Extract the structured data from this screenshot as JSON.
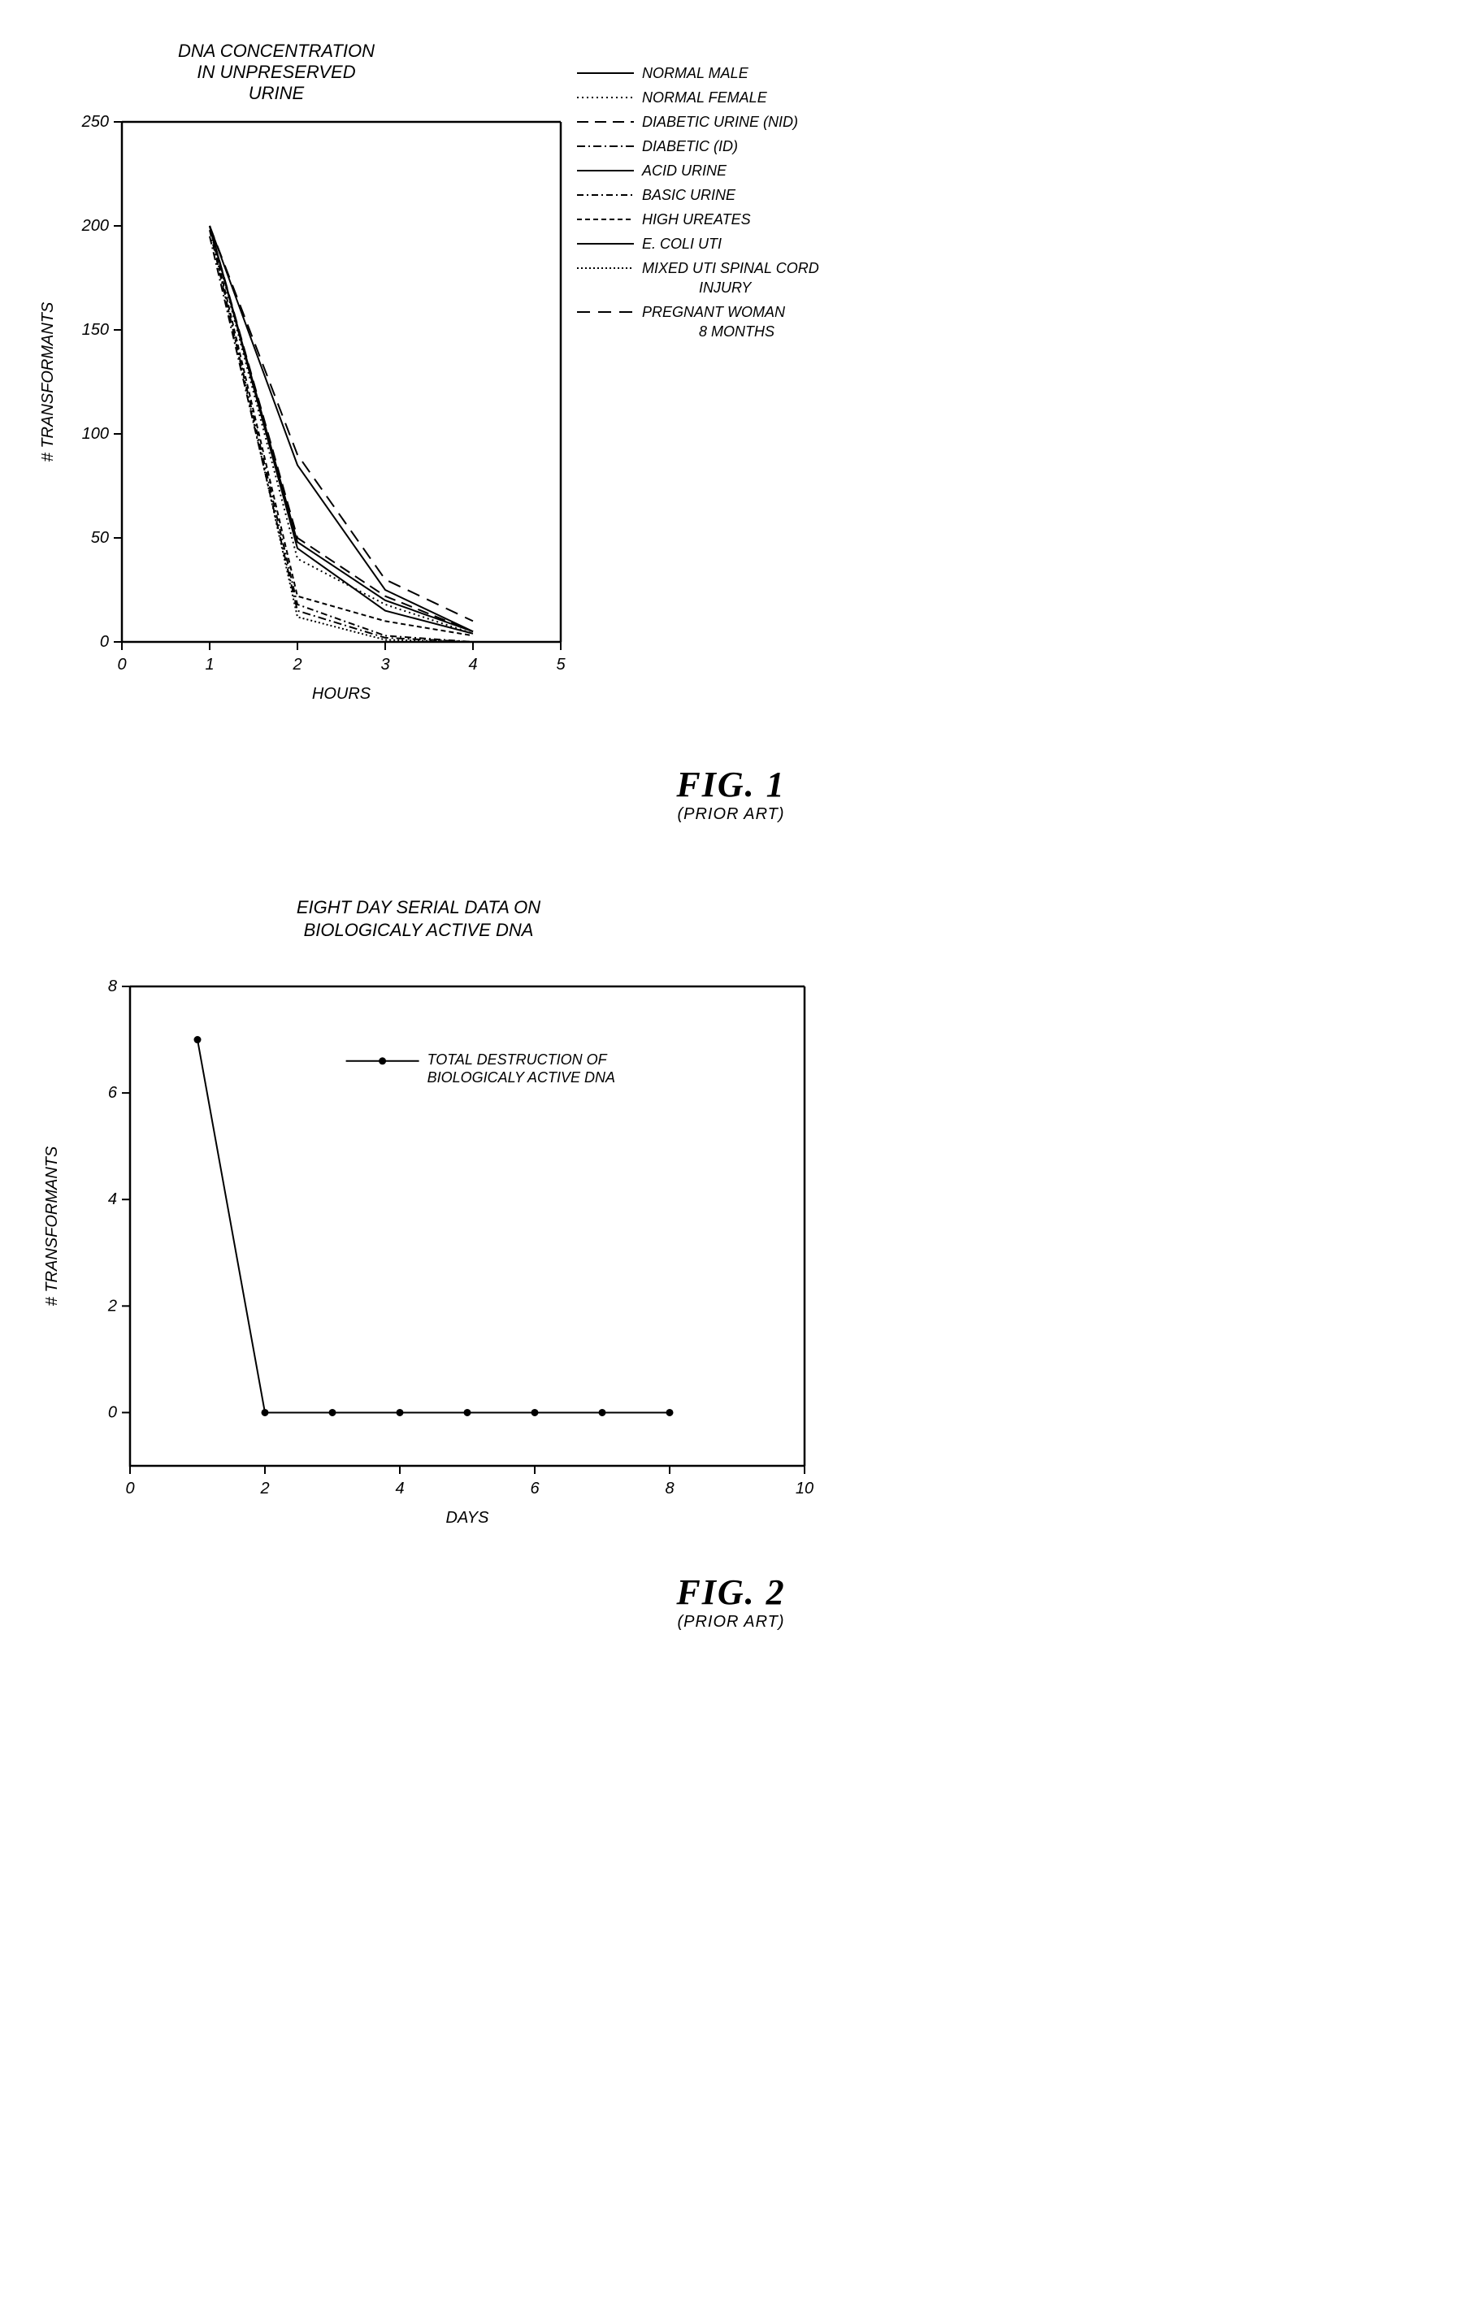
{
  "fig1": {
    "type": "line",
    "title_line1": "DNA CONCENTRATION",
    "title_line2": "IN UNPRESERVED",
    "title_line3": "URINE",
    "title_fontsize": 22,
    "xlabel": "HOURS",
    "ylabel": "# TRANSFORMANTS",
    "label_fontsize": 20,
    "tick_fontsize": 20,
    "xlim": [
      0,
      5
    ],
    "ylim": [
      0,
      250
    ],
    "xtick_step": 1,
    "xticks": [
      0,
      1,
      2,
      3,
      4,
      5
    ],
    "yticks": [
      0,
      50,
      100,
      150,
      200,
      250
    ],
    "background_color": "#ffffff",
    "axis_color": "#000000",
    "line_color": "#000000",
    "line_width": 2,
    "legend_fontsize": 18,
    "legend_line_length": 70,
    "series": [
      {
        "name": "NORMAL MALE",
        "dash": "none",
        "x": [
          1,
          2,
          3,
          4
        ],
        "y": [
          200,
          85,
          25,
          5
        ]
      },
      {
        "name": "NORMAL FEMALE",
        "dash": "2 4",
        "x": [
          1,
          2,
          3,
          4
        ],
        "y": [
          200,
          40,
          18,
          4
        ]
      },
      {
        "name": "DIABETIC URINE (NID)",
        "dash": "14 8",
        "x": [
          1,
          2,
          3,
          4
        ],
        "y": [
          200,
          50,
          22,
          5
        ]
      },
      {
        "name": "DIABETIC (ID)",
        "dash": "10 4 2 4",
        "x": [
          1,
          2,
          3,
          4
        ],
        "y": [
          195,
          15,
          2,
          0
        ]
      },
      {
        "name": "ACID URINE",
        "dash": "none",
        "x": [
          1,
          2,
          3,
          4
        ],
        "y": [
          200,
          48,
          20,
          5
        ]
      },
      {
        "name": "BASIC URINE",
        "dash": "8 4 2 4",
        "x": [
          1,
          2,
          3,
          4
        ],
        "y": [
          198,
          18,
          3,
          0
        ]
      },
      {
        "name": "HIGH UREATES",
        "dash": "6 4",
        "x": [
          1,
          2,
          3,
          4
        ],
        "y": [
          200,
          22,
          10,
          3
        ]
      },
      {
        "name": "E. COLI UTI",
        "dash": "none",
        "x": [
          1,
          2,
          3,
          4
        ],
        "y": [
          200,
          45,
          15,
          4
        ]
      },
      {
        "name_line1": "MIXED UTI SPINAL CORD",
        "name_line2": "INJURY",
        "dash": "2 3",
        "x": [
          1,
          2,
          3,
          4
        ],
        "y": [
          200,
          12,
          1,
          0
        ]
      },
      {
        "name_line1": "PREGNANT WOMAN",
        "name_line2": "8 MONTHS",
        "dash": "16 10",
        "x": [
          1,
          2,
          3,
          4
        ],
        "y": [
          200,
          90,
          30,
          10
        ]
      }
    ],
    "fig_label": "FIG. 1",
    "fig_sub": "(PRIOR ART)"
  },
  "fig2": {
    "type": "line",
    "title_line1": "EIGHT DAY SERIAL DATA ON",
    "title_line2": "BIOLOGICALY  ACTIVE DNA",
    "title_fontsize": 22,
    "xlabel": "DAYS",
    "ylabel": "# TRANSFORMANTS",
    "label_fontsize": 20,
    "tick_fontsize": 20,
    "xlim": [
      0,
      10
    ],
    "ylim": [
      -1,
      8
    ],
    "xticks": [
      0,
      2,
      4,
      6,
      8,
      10
    ],
    "yticks": [
      0,
      2,
      4,
      6,
      8
    ],
    "background_color": "#ffffff",
    "axis_color": "#000000",
    "line_color": "#000000",
    "line_width": 2.5,
    "marker": "circle",
    "marker_size": 4,
    "legend_fontsize": 18,
    "series": {
      "name_line1": "TOTAL DESTRUCTION OF",
      "name_line2": "BIOLOGICALY ACTIVE DNA",
      "x": [
        1,
        2,
        3,
        4,
        5,
        6,
        7,
        8
      ],
      "y": [
        7,
        0,
        0,
        0,
        0,
        0,
        0,
        0
      ]
    },
    "fig_label": "FIG. 2",
    "fig_sub": "(PRIOR ART)"
  }
}
